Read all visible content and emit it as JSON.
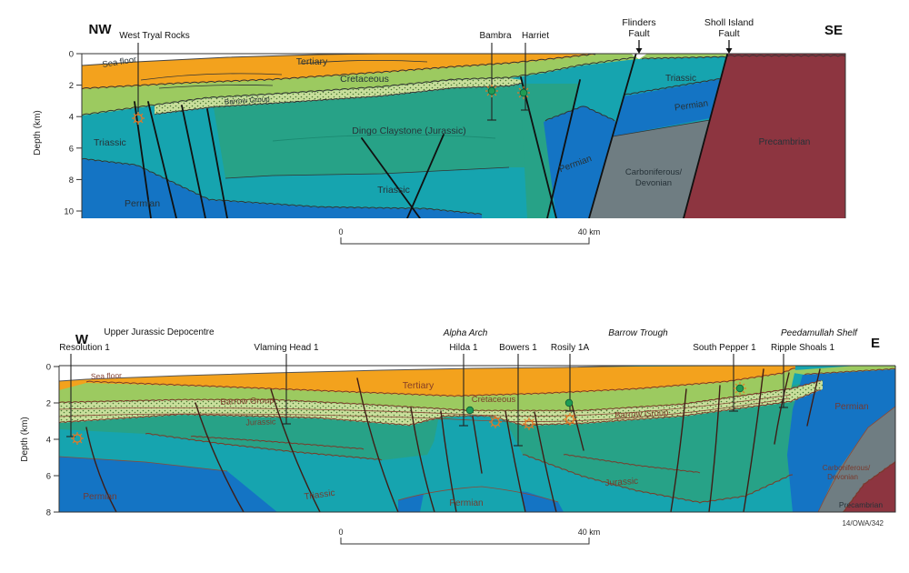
{
  "colors": {
    "tertiary": "#F3A21D",
    "cretaceous": "#9CCA60",
    "barrow": "#C9DF9C",
    "jurassic": "#27A287",
    "triassic": "#16A4AF",
    "permian": "#1474C4",
    "carb_devonian": "#6F7D82",
    "precambrian": "#8D3540",
    "water": "#FFFFFF",
    "oil_show_outline": "#E87722",
    "gas_show_fill": "#1E9C55"
  },
  "top": {
    "dir_left": "NW",
    "dir_right": "SE",
    "wells": [
      {
        "name": "West Tryal Rocks"
      },
      {
        "name": "Bambra"
      },
      {
        "name": "Harriet"
      }
    ],
    "fault_labels": [
      {
        "line1": "Flinders",
        "line2": "Fault"
      },
      {
        "line1": "Sholl Island",
        "line2": "Fault"
      }
    ],
    "units": {
      "sea_floor": "Sea floor",
      "tertiary": "Tertiary",
      "cretaceous": "Cretaceous",
      "barrow_group": "Barrow Group",
      "dingo": "Dingo Claystone (Jurassic)",
      "triassic_west": "Triassic",
      "permian_west": "Permian",
      "triassic_mid": "Triassic",
      "permian_mid": "Permian",
      "carboniferous_line1": "Carboniferous/",
      "carboniferous_line2": "Devonian",
      "triassic_east": "Triassic",
      "permian_east": "Permian",
      "precambrian": "Precambrian"
    },
    "axis": {
      "label": "Depth (km)",
      "ticks": [
        "0",
        "2",
        "4",
        "6",
        "8",
        "10"
      ]
    },
    "scalebar": {
      "start": "0",
      "end": "40 km"
    }
  },
  "bottom": {
    "dir_left": "W",
    "dir_right": "E",
    "structures": [
      {
        "name": "Upper Jurassic Depocentre"
      },
      {
        "name": "Alpha Arch"
      },
      {
        "name": "Barrow Trough"
      },
      {
        "name": "Peedamullah Shelf"
      }
    ],
    "wells": [
      {
        "name": "Resolution 1"
      },
      {
        "name": "Vlaming Head 1"
      },
      {
        "name": "Hilda 1"
      },
      {
        "name": "Bowers 1"
      },
      {
        "name": "Rosily 1A"
      },
      {
        "name": "South Pepper 1"
      },
      {
        "name": "Ripple Shoals 1"
      }
    ],
    "units": {
      "sea_floor": "Sea floor",
      "tertiary": "Tertiary",
      "cretaceous": "Cretaceous",
      "barrow_group_west": "Barrow Group",
      "barrow_group_mid": "Barrow Group",
      "jurassic_west": "Jurassic",
      "jurassic_mid": "Jurassic",
      "triassic": "Triassic",
      "permian_west": "Permian",
      "permian_mid": "Permian",
      "permian_east": "Permian",
      "carboniferous_line1": "Carboniferous/",
      "carboniferous_line2": "Devonian",
      "precambrian": "Precambrian"
    },
    "axis": {
      "label": "Depth (km)",
      "ticks": [
        "0",
        "2",
        "4",
        "6",
        "8"
      ]
    },
    "scalebar": {
      "start": "0",
      "end": "40 km"
    }
  },
  "footer": {
    "figure_ref": "14/OWA/342"
  }
}
